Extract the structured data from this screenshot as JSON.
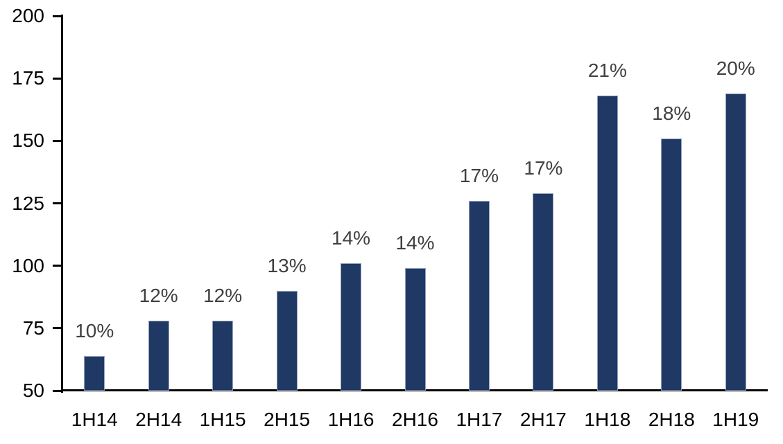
{
  "chart_data": {
    "type": "bar",
    "title": "",
    "xlabel": "",
    "ylabel": "",
    "categories": [
      "1H14",
      "2H14",
      "1H15",
      "2H15",
      "1H16",
      "2H16",
      "1H17",
      "2H17",
      "1H18",
      "2H18",
      "1H19"
    ],
    "values": [
      64,
      78,
      78,
      90,
      101,
      99,
      126,
      129,
      168,
      151,
      169
    ],
    "bar_labels": [
      "10%",
      "12%",
      "12%",
      "13%",
      "14%",
      "14%",
      "17%",
      "17%",
      "21%",
      "18%",
      "20%"
    ],
    "ylim": [
      50,
      200
    ],
    "yticks": [
      200,
      175,
      150,
      125,
      100,
      75,
      50
    ],
    "grid": false,
    "legend": "none",
    "colors": {
      "bar_fill": "#1f3864",
      "bar_edge": "#93a3bd",
      "value_label": "#404040",
      "axis_text": "#000000",
      "axis_line": "#000000",
      "background": "#ffffff"
    }
  }
}
